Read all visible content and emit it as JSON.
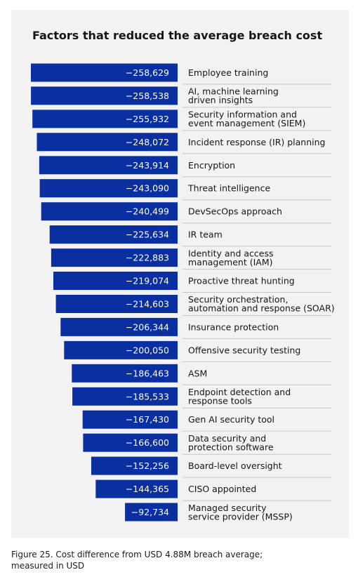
{
  "chart_data": {
    "type": "bar",
    "orientation": "horizontal",
    "title": "Factors that reduced the average breach cost",
    "xlabel": "",
    "ylabel": "",
    "grid": false,
    "bar_color": "#0a2fa0",
    "categories": [
      "Employee training",
      "AI, machine learning\ndriven insights",
      "Security information and\nevent management (SIEM)",
      "Incident response (IR) planning",
      "Encryption",
      "Threat intelligence",
      "DevSecOps approach",
      "IR team",
      "Identity and access\nmanagement (IAM)",
      "Proactive threat hunting",
      "Security orchestration,\nautomation and response (SOAR)",
      " Insurance protection",
      "Offensive security testing",
      "ASM",
      "Endpoint detection and\nresponse tools",
      "Gen AI security tool",
      "Data security and\nprotection software",
      "Board-level oversight",
      "CISO appointed",
      "Managed security\nservice provider (MSSP)"
    ],
    "values": [
      -258629,
      -258538,
      -255932,
      -248072,
      -243914,
      -243090,
      -240499,
      -225634,
      -222883,
      -219074,
      -214603,
      -206344,
      -200050,
      -186463,
      -185533,
      -167430,
      -166600,
      -152256,
      -144365,
      -92734
    ],
    "value_labels": [
      "−258,629",
      "−258,538",
      "−255,932",
      "−248,072",
      "−243,914",
      "−243,090",
      "−240,499",
      "−225,634",
      "−222,883",
      "−219,074",
      "−214,603",
      "−206,344",
      "−200,050",
      "−186,463",
      "−185,533",
      "−167,430",
      "−166,600",
      "−152,256",
      "−144,365",
      "−92,734"
    ]
  },
  "caption": "Figure 25. Cost difference from USD 4.88M breach average; measured in USD"
}
